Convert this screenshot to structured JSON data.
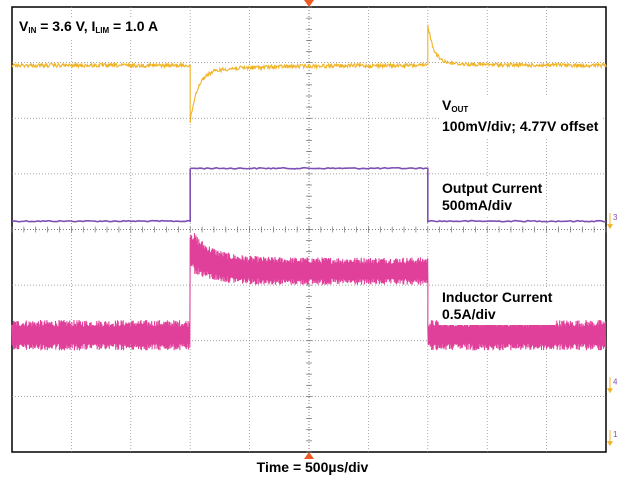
{
  "chart_data": {
    "type": "line",
    "title": "",
    "conditions": {
      "vin_symbol": "V",
      "vin_sub": "IN",
      "vin_value": " = 3.6 V, ",
      "ilim_symbol": "I",
      "ilim_sub": "LIM",
      "ilim_value": " = 1.0 A"
    },
    "xlabel": "Time = 500µs/div",
    "grid": true,
    "divisions": {
      "x": 10,
      "y": 8
    },
    "load_step": {
      "rise_div": 3,
      "fall_div": 7
    },
    "series": [
      {
        "key": "vout",
        "name_symbol": "V",
        "name_sub": "OUT",
        "scale": "100mV/div; 4.77V offset",
        "color": "#f0b429",
        "baseline_div": 1.05,
        "undershoot_div": 0.9,
        "overshoot_div": 0.35
      },
      {
        "key": "iout",
        "name": "Output Current",
        "scale": "500mA/div",
        "color": "#7e50b4",
        "low_div": 3.85,
        "high_div": 2.9
      },
      {
        "key": "inductor",
        "name": "Inductor Current",
        "scale": "0.5A/div",
        "color": "#e0409a",
        "low_center_div": 5.9,
        "low_ripple_div": 0.55,
        "high_center_div": 4.75,
        "high_ripple_div": 0.5,
        "peak_div": 4.1
      }
    ],
    "markers": [
      "3",
      "4",
      "1"
    ],
    "colors": {
      "trigger": "#ef5a22",
      "grid": "#888888",
      "marker": "#f0b429"
    }
  }
}
